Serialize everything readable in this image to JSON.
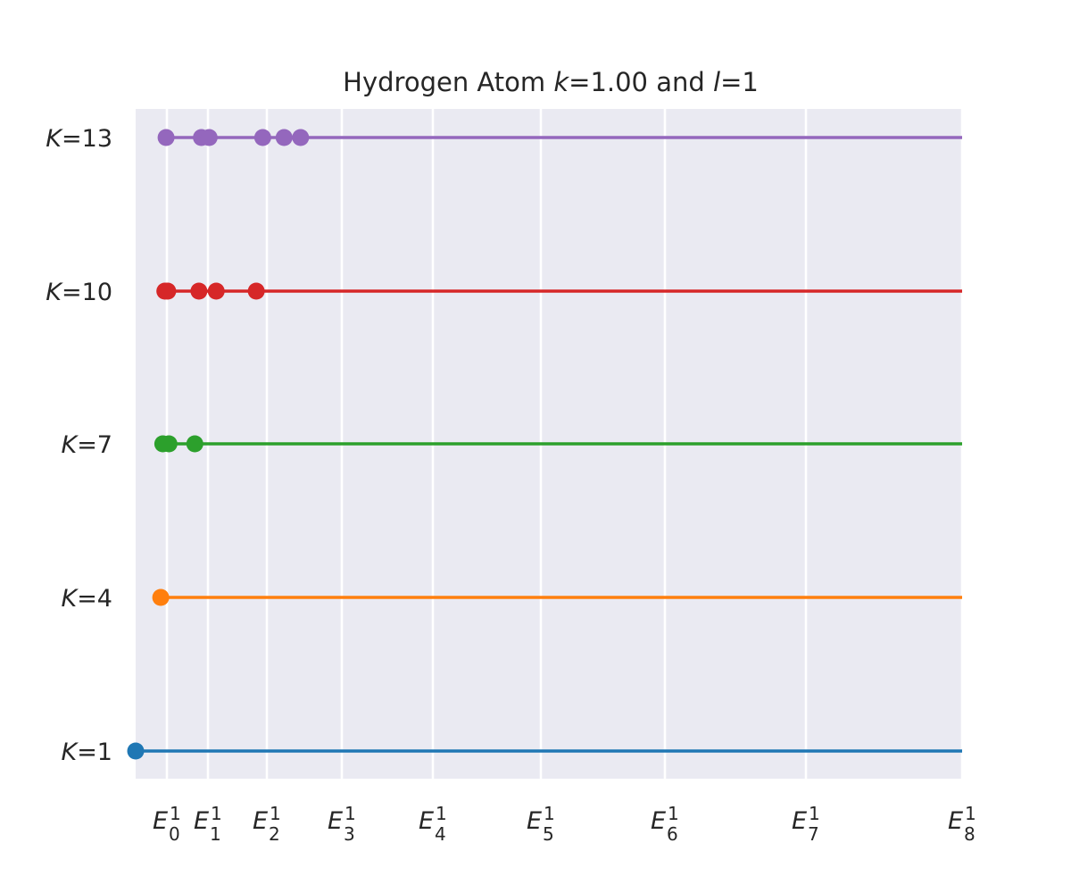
{
  "chart_data": {
    "type": "scatter",
    "title": {
      "prefix": "Hydrogen Atom ",
      "k_symbol": "k",
      "k_value": "=1.00 and ",
      "l_symbol": "l",
      "l_value": "=1"
    },
    "grid": true,
    "xlim": [
      0,
      8
    ],
    "x_ticks": [
      {
        "value": 0,
        "main": "E",
        "sup": "1",
        "sub": "0"
      },
      {
        "value": 1,
        "main": "E",
        "sup": "1",
        "sub": "1"
      },
      {
        "value": 2,
        "main": "E",
        "sup": "1",
        "sub": "2"
      },
      {
        "value": 3,
        "main": "E",
        "sup": "1",
        "sub": "3"
      },
      {
        "value": 4,
        "main": "E",
        "sup": "1",
        "sub": "4"
      },
      {
        "value": 5,
        "main": "E",
        "sup": "1",
        "sub": "5"
      },
      {
        "value": 6,
        "main": "E",
        "sup": "1",
        "sub": "6"
      },
      {
        "value": 7,
        "main": "E",
        "sup": "1",
        "sub": "7"
      },
      {
        "value": 8,
        "main": "E",
        "sup": "1",
        "sub": "8"
      }
    ],
    "series": [
      {
        "K": 1,
        "label_symbol": "K",
        "label_value": "=1",
        "color": "#1f77b4",
        "points": [
          -0.78
        ]
      },
      {
        "K": 4,
        "label_symbol": "K",
        "label_value": "=4",
        "color": "#ff7f0e",
        "points": [
          -0.15
        ]
      },
      {
        "K": 7,
        "label_symbol": "K",
        "label_value": "=7",
        "color": "#2ca02c",
        "points": [
          -0.1,
          0.05,
          0.68
        ]
      },
      {
        "K": 10,
        "label_symbol": "K",
        "label_value": "=10",
        "color": "#d62728",
        "points": [
          -0.05,
          0.02,
          0.78,
          1.14,
          1.82
        ]
      },
      {
        "K": 13,
        "label_symbol": "K",
        "label_value": "=13",
        "color": "#9467bd",
        "points": [
          -0.02,
          0.84,
          1.02,
          1.93,
          2.23,
          2.45
        ]
      }
    ]
  }
}
